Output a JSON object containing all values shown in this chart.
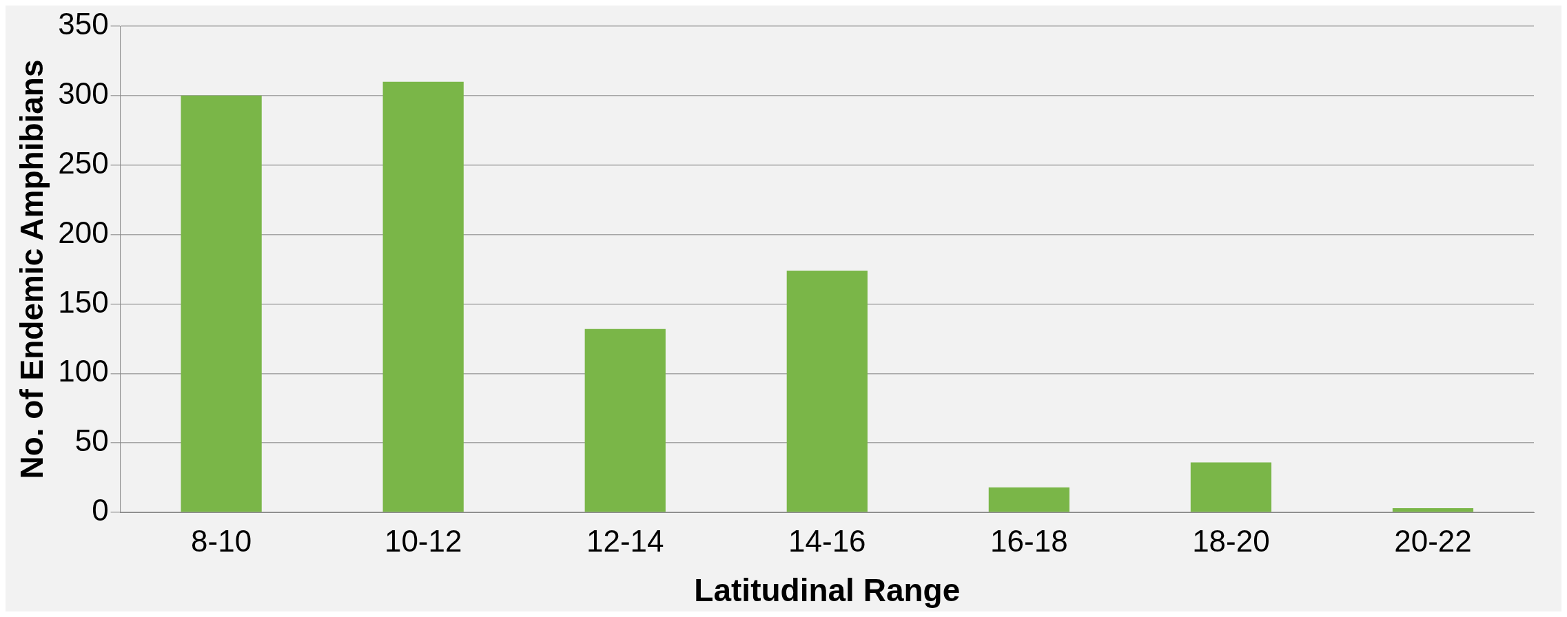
{
  "chart_data": {
    "type": "bar",
    "xlabel": "Latitudinal Range",
    "ylabel": "No. of Endemic Amphibians",
    "categories": [
      "8-10",
      "10-12",
      "12-14",
      "14-16",
      "16-18",
      "18-20",
      "20-22"
    ],
    "values": [
      300,
      310,
      132,
      174,
      18,
      36,
      3
    ],
    "color": "#7ab648",
    "ylim": [
      0,
      350
    ],
    "yticks": [
      0,
      50,
      100,
      150,
      200,
      250,
      300,
      350
    ],
    "grid": "y",
    "legend": false
  }
}
